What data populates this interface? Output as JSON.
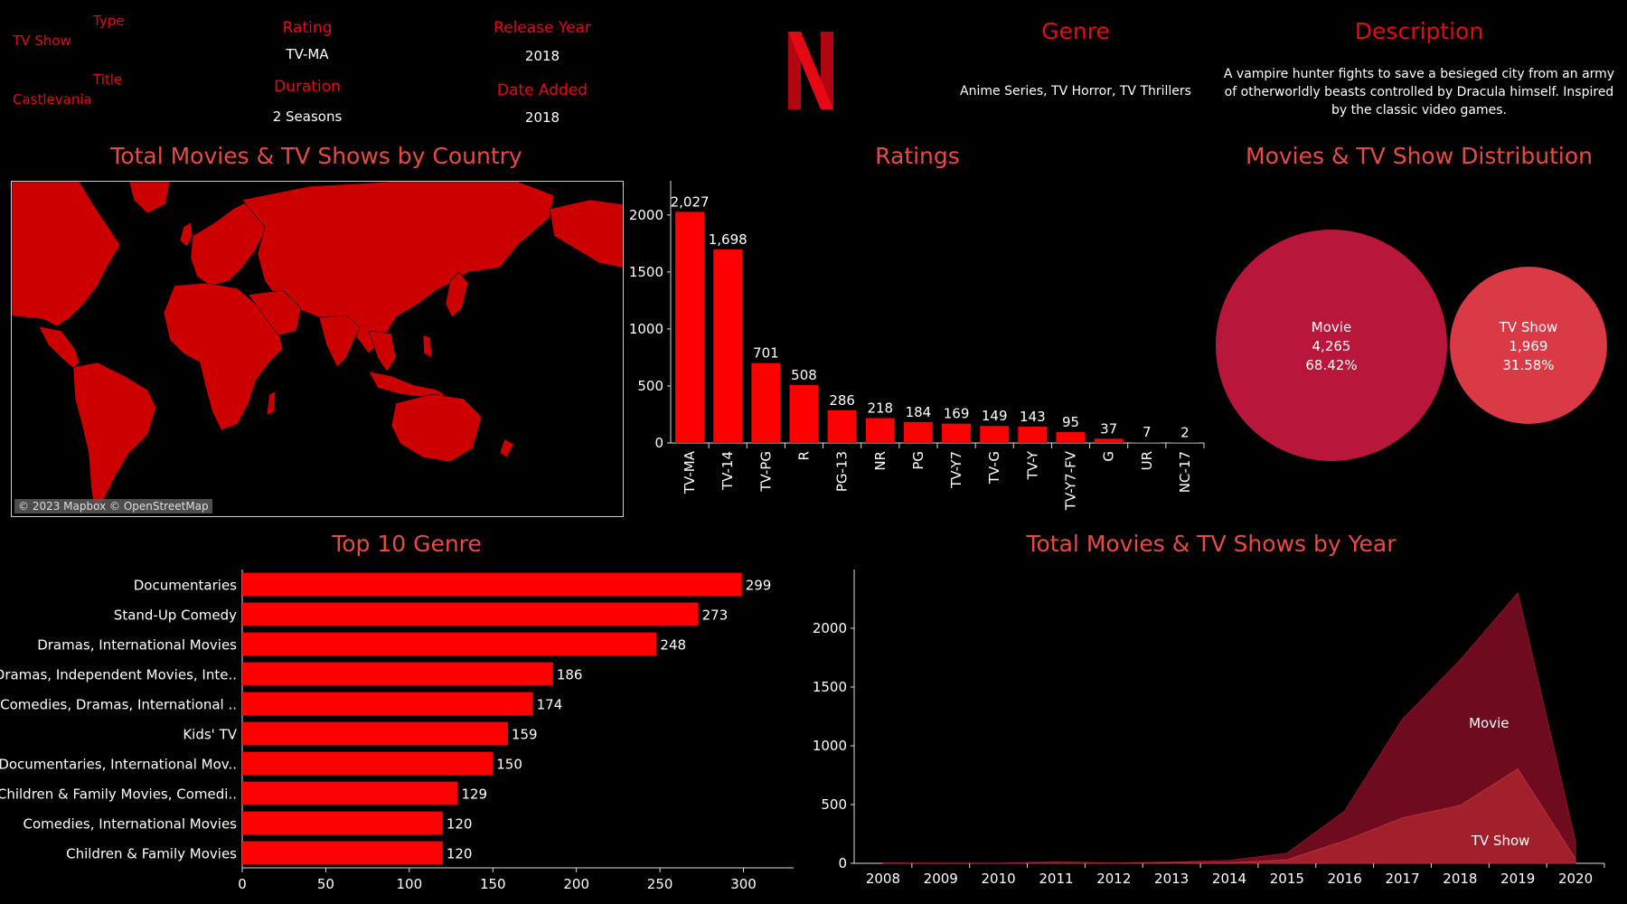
{
  "details": {
    "type_label": "Type",
    "type_value": "TV Show",
    "title_label": "Title",
    "title_value": "Castlevania",
    "rating_label": "Rating",
    "rating_value": "TV-MA",
    "duration_label": "Duration",
    "duration_value": "2 Seasons",
    "release_label": "Release Year",
    "release_value": "2018",
    "added_label": "Date Added",
    "added_value": "2018",
    "genre_label": "Genre",
    "genre_value": "Anime Series, TV Horror, TV Thrillers",
    "desc_label": "Description",
    "desc_value": "A vampire hunter fights to save a besieged city from an army of otherworldly beasts controlled by Dracula himself. Inspired by the classic video games."
  },
  "map": {
    "title": "Total Movies & TV Shows by Country",
    "credit": "© 2023 Mapbox © OpenStreetMap"
  },
  "colors": {
    "accent": "#e50914",
    "bar": "#ff0000",
    "movie_bubble": "#b8163a",
    "tv_bubble": "#d93a45",
    "movie_area": "#6e0b1e",
    "tv_area": "#a1202c"
  },
  "chart_data": [
    {
      "type": "bar",
      "title": "Ratings",
      "categories": [
        "TV-MA",
        "TV-14",
        "TV-PG",
        "R",
        "PG-13",
        "NR",
        "PG",
        "TV-Y7",
        "TV-G",
        "TV-Y",
        "TV-Y7-FV",
        "G",
        "UR",
        "NC-17"
      ],
      "values": [
        2027,
        1698,
        701,
        508,
        286,
        218,
        184,
        169,
        149,
        143,
        95,
        37,
        7,
        2
      ],
      "value_labels": [
        "2,027",
        "1,698",
        "701",
        "508",
        "286",
        "218",
        "184",
        "169",
        "149",
        "143",
        "95",
        "37",
        "7",
        "2"
      ],
      "yticks": [
        0,
        500,
        1000,
        1500,
        2000
      ],
      "ylim": [
        0,
        2300
      ]
    },
    {
      "type": "pie",
      "title": "Movies & TV Show Distribution",
      "series": [
        {
          "name": "Movie",
          "value": 4265,
          "value_label": "4,265",
          "pct": "68.42%"
        },
        {
          "name": "TV Show",
          "value": 1969,
          "value_label": "1,969",
          "pct": "31.58%"
        }
      ]
    },
    {
      "type": "bar",
      "title": "Top 10 Genre",
      "orientation": "horizontal",
      "categories": [
        "Documentaries",
        "Stand-Up Comedy",
        "Dramas, International Movies",
        "Dramas, Independent Movies, Inte..",
        "Comedies, Dramas, International ..",
        "Kids' TV",
        "Documentaries, International Mov..",
        "Children & Family Movies, Comedi..",
        "Comedies, International Movies",
        "Children & Family Movies"
      ],
      "values": [
        299,
        273,
        248,
        186,
        174,
        159,
        150,
        129,
        120,
        120
      ],
      "xticks": [
        0,
        50,
        100,
        150,
        200,
        250,
        300
      ],
      "xlim": [
        0,
        330
      ]
    },
    {
      "type": "area",
      "title": "Total Movies & TV Shows by Year",
      "x": [
        "2008",
        "2009",
        "2010",
        "2011",
        "2012",
        "2013",
        "2014",
        "2015",
        "2016",
        "2017",
        "2018",
        "2019",
        "2020"
      ],
      "series": [
        {
          "name": "Movie",
          "values": [
            2,
            2,
            1,
            13,
            3,
            6,
            19,
            56,
            253,
            839,
            1237,
            1497,
            147
          ]
        },
        {
          "name": "TV Show",
          "values": [
            1,
            0,
            0,
            1,
            0,
            6,
            6,
            30,
            192,
            387,
            492,
            803,
            37
          ]
        }
      ],
      "yticks": [
        0,
        500,
        1000,
        1500,
        2000
      ],
      "ylim": [
        0,
        2500
      ]
    }
  ]
}
